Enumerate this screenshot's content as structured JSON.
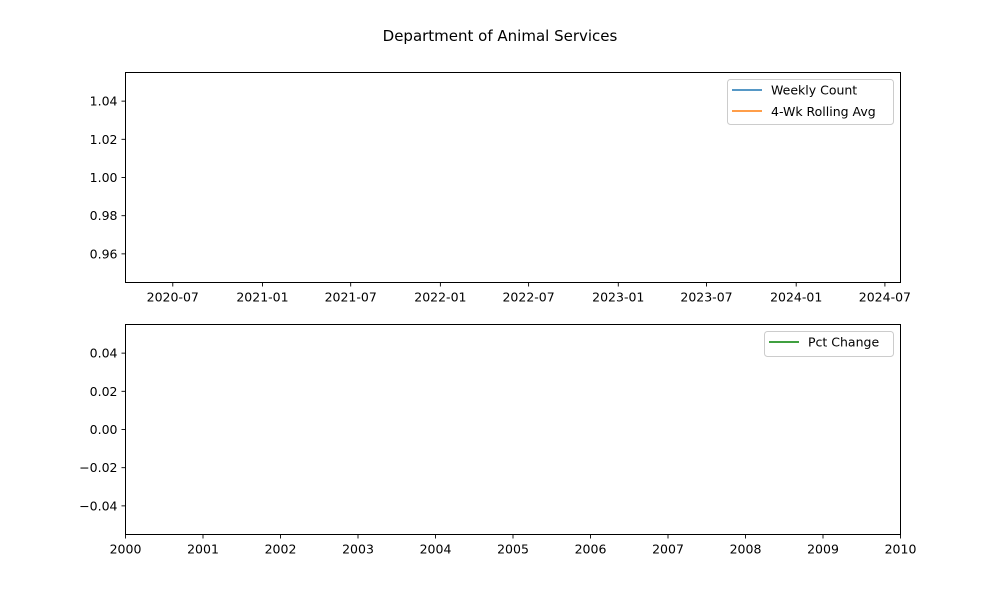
{
  "figure": {
    "title": "Department of Animal Services"
  },
  "chart_data": [
    {
      "type": "line",
      "title": "",
      "xlabel": "",
      "ylabel": "",
      "x_axis": "date",
      "xlim": [
        "2020-03-26",
        "2024-08-02"
      ],
      "ylim": [
        0.945,
        1.055
      ],
      "x_ticks": [
        "2020-07",
        "2021-01",
        "2021-07",
        "2022-01",
        "2022-07",
        "2023-01",
        "2023-07",
        "2024-01",
        "2024-07"
      ],
      "y_ticks": [
        "0.96",
        "0.98",
        "1.00",
        "1.02",
        "1.04"
      ],
      "series": [
        {
          "name": "Weekly Count",
          "color": "#1f77b4",
          "x": [],
          "y": []
        },
        {
          "name": "4-Wk Rolling Avg",
          "color": "#ff7f0e",
          "x": [],
          "y": []
        }
      ],
      "grid": false,
      "legend": "upper right"
    },
    {
      "type": "line",
      "title": "",
      "xlabel": "",
      "ylabel": "",
      "xlim": [
        2000,
        2010
      ],
      "ylim": [
        -0.055,
        0.055
      ],
      "x_ticks": [
        "2000",
        "2001",
        "2002",
        "2003",
        "2004",
        "2005",
        "2006",
        "2007",
        "2008",
        "2009",
        "2010"
      ],
      "y_ticks": [
        "0.04",
        "0.02",
        "0.00",
        "−0.02",
        "−0.04"
      ],
      "series": [
        {
          "name": "Pct Change",
          "color": "#008000",
          "x": [],
          "y": []
        }
      ],
      "grid": false,
      "legend": "upper right"
    }
  ]
}
